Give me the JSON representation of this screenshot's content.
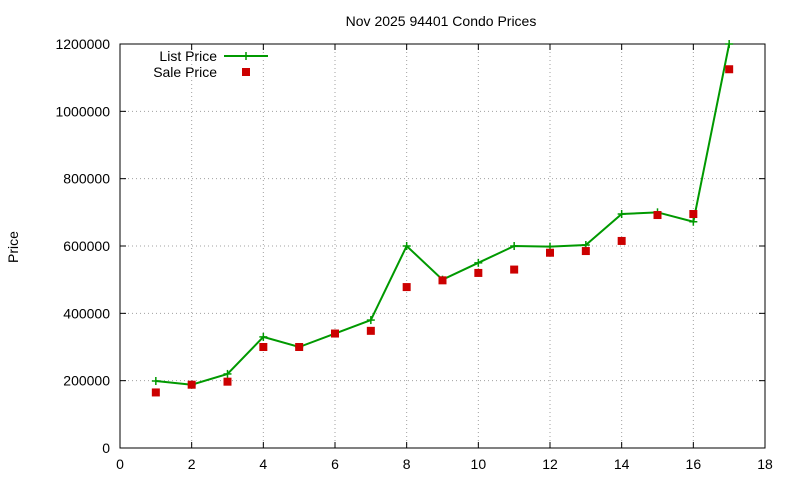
{
  "chart_data": {
    "type": "line",
    "title": "Nov 2025 94401 Condo Prices",
    "xlabel": "",
    "ylabel": "Price",
    "xlim": [
      0,
      18
    ],
    "ylim": [
      0,
      1200000
    ],
    "xticks": [
      0,
      2,
      4,
      6,
      8,
      10,
      12,
      14,
      16,
      18
    ],
    "yticks": [
      0,
      200000,
      400000,
      600000,
      800000,
      1000000,
      1200000
    ],
    "grid": true,
    "legend_position": "top-left",
    "series": [
      {
        "name": "List Price",
        "style": "line-with-plus-markers",
        "color": "#009900",
        "x": [
          1,
          2,
          3,
          4,
          5,
          6,
          7,
          8,
          9,
          10,
          11,
          12,
          13,
          14,
          15,
          16,
          17
        ],
        "y": [
          199000,
          188000,
          220000,
          330000,
          300000,
          340000,
          380000,
          600000,
          500000,
          550000,
          600000,
          598000,
          603000,
          695000,
          700000,
          672000,
          1200000
        ]
      },
      {
        "name": "Sale Price",
        "style": "square-markers",
        "color": "#cc0000",
        "x": [
          1,
          2,
          3,
          4,
          5,
          6,
          7,
          8,
          9,
          10,
          11,
          12,
          13,
          14,
          15,
          16,
          17
        ],
        "y": [
          165000,
          188000,
          197000,
          300000,
          300000,
          340000,
          348000,
          478000,
          498000,
          520000,
          530000,
          580000,
          585000,
          615000,
          692000,
          695000,
          1125000
        ]
      }
    ]
  }
}
